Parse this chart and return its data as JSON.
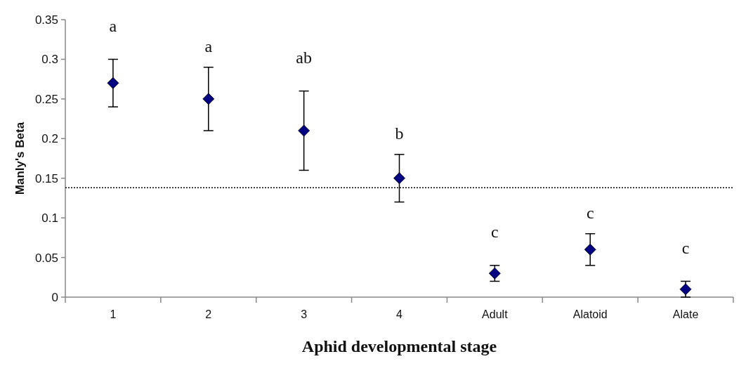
{
  "chart_data": {
    "type": "scatter",
    "xlabel": "Aphid developmental stage",
    "ylabel": "Manly's Beta",
    "categories": [
      "1",
      "2",
      "3",
      "4",
      "Adult",
      "Alatoid",
      "Alate"
    ],
    "series": [
      {
        "color": "#000080",
        "values": [
          0.27,
          0.25,
          0.21,
          0.15,
          0.03,
          0.06,
          0.01
        ],
        "errors": [
          0.03,
          0.04,
          0.05,
          0.03,
          0.01,
          0.02,
          0.01
        ]
      }
    ],
    "marker": "diamond",
    "ylim": [
      0,
      0.35
    ],
    "yticks": [
      0,
      0.05,
      0.1,
      0.15,
      0.2,
      0.25,
      0.3,
      0.35
    ],
    "ref_lines": [
      {
        "axis": "y",
        "value": 0.138,
        "line_style": "dotted",
        "color": "#000000"
      }
    ],
    "annotations": [
      "a",
      "a",
      "ab",
      "b",
      "c",
      "c",
      "c"
    ]
  }
}
